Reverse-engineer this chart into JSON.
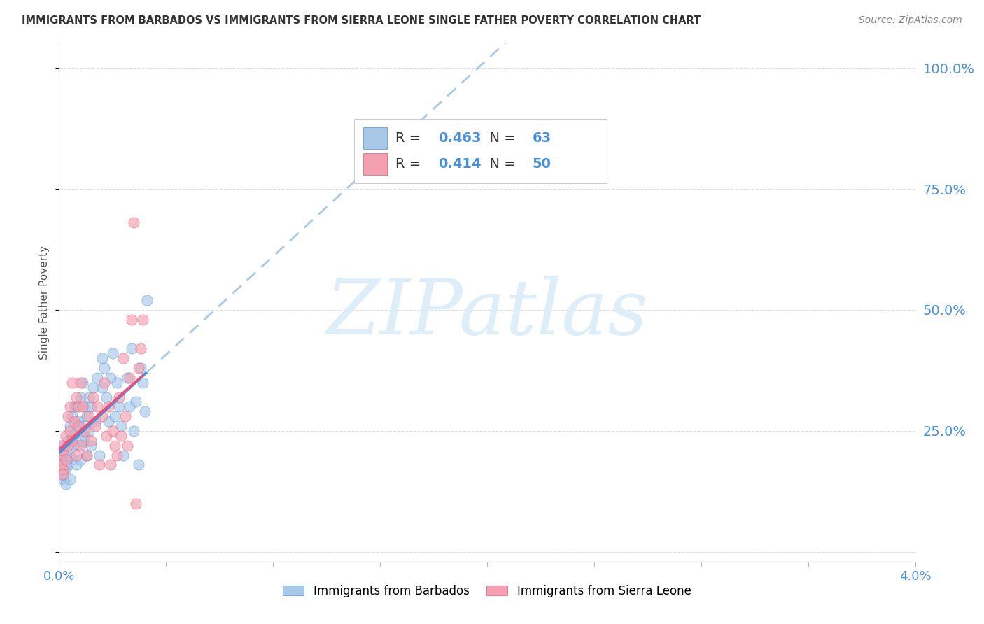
{
  "title": "IMMIGRANTS FROM BARBADOS VS IMMIGRANTS FROM SIERRA LEONE SINGLE FATHER POVERTY CORRELATION CHART",
  "source": "Source: ZipAtlas.com",
  "ylabel": "Single Father Poverty",
  "legend_label1": "Immigrants from Barbados",
  "legend_label2": "Immigrants from Sierra Leone",
  "scatter_color1": "#a8c8e8",
  "scatter_color2": "#f4a0b0",
  "line_color1": "#4a90d9",
  "line_color2": "#e8507a",
  "line_dashed_color": "#a8c8e8",
  "text_color_blue": "#4a90d9",
  "watermark": "ZIPatlas",
  "watermark_color": "#ddeef8",
  "xlim": [
    0.0,
    0.04
  ],
  "ylim": [
    -0.02,
    1.05
  ],
  "R1": "0.463",
  "N1": "63",
  "R2": "0.414",
  "N2": "50",
  "background_color": "#ffffff",
  "grid_color": "#dddddd",
  "barbados_x": [
    0.0,
    0.0001,
    0.0001,
    0.0002,
    0.0002,
    0.0002,
    0.0003,
    0.0003,
    0.0003,
    0.0004,
    0.0004,
    0.0005,
    0.0005,
    0.0005,
    0.0006,
    0.0006,
    0.0006,
    0.0007,
    0.0007,
    0.0008,
    0.0008,
    0.0008,
    0.0009,
    0.0009,
    0.001,
    0.001,
    0.001,
    0.0011,
    0.0011,
    0.0012,
    0.0012,
    0.0013,
    0.0013,
    0.0014,
    0.0014,
    0.0015,
    0.0015,
    0.0016,
    0.0017,
    0.0018,
    0.0019,
    0.002,
    0.002,
    0.0021,
    0.0022,
    0.0023,
    0.0024,
    0.0025,
    0.0026,
    0.0027,
    0.0028,
    0.0029,
    0.003,
    0.0032,
    0.0033,
    0.0034,
    0.0035,
    0.0036,
    0.0037,
    0.0038,
    0.0039,
    0.004,
    0.0041
  ],
  "barbados_y": [
    0.18,
    0.2,
    0.16,
    0.22,
    0.15,
    0.19,
    0.17,
    0.21,
    0.14,
    0.23,
    0.18,
    0.26,
    0.2,
    0.15,
    0.28,
    0.24,
    0.19,
    0.3,
    0.22,
    0.25,
    0.18,
    0.3,
    0.27,
    0.22,
    0.32,
    0.26,
    0.19,
    0.35,
    0.23,
    0.3,
    0.24,
    0.28,
    0.2,
    0.32,
    0.25,
    0.3,
    0.22,
    0.34,
    0.27,
    0.36,
    0.2,
    0.4,
    0.34,
    0.38,
    0.32,
    0.27,
    0.36,
    0.41,
    0.28,
    0.35,
    0.3,
    0.26,
    0.2,
    0.36,
    0.3,
    0.42,
    0.25,
    0.31,
    0.18,
    0.38,
    0.35,
    0.29,
    0.52
  ],
  "sierraleone_x": [
    0.0,
    0.0001,
    0.0001,
    0.0002,
    0.0002,
    0.0002,
    0.0003,
    0.0003,
    0.0004,
    0.0004,
    0.0005,
    0.0005,
    0.0006,
    0.0006,
    0.0007,
    0.0008,
    0.0008,
    0.0009,
    0.0009,
    0.001,
    0.001,
    0.0011,
    0.0012,
    0.0013,
    0.0014,
    0.0015,
    0.0016,
    0.0017,
    0.0018,
    0.0019,
    0.002,
    0.0021,
    0.0022,
    0.0023,
    0.0024,
    0.0025,
    0.0026,
    0.0027,
    0.0028,
    0.0029,
    0.003,
    0.0031,
    0.0032,
    0.0033,
    0.0034,
    0.0035,
    0.0036,
    0.0037,
    0.0038,
    0.0039
  ],
  "sierraleone_y": [
    0.2,
    0.18,
    0.22,
    0.17,
    0.21,
    0.16,
    0.24,
    0.19,
    0.22,
    0.28,
    0.25,
    0.3,
    0.23,
    0.35,
    0.27,
    0.2,
    0.32,
    0.26,
    0.3,
    0.35,
    0.22,
    0.3,
    0.25,
    0.2,
    0.28,
    0.23,
    0.32,
    0.26,
    0.3,
    0.18,
    0.28,
    0.35,
    0.24,
    0.3,
    0.18,
    0.25,
    0.22,
    0.2,
    0.32,
    0.24,
    0.4,
    0.28,
    0.22,
    0.36,
    0.48,
    0.68,
    0.1,
    0.38,
    0.42,
    0.48
  ]
}
